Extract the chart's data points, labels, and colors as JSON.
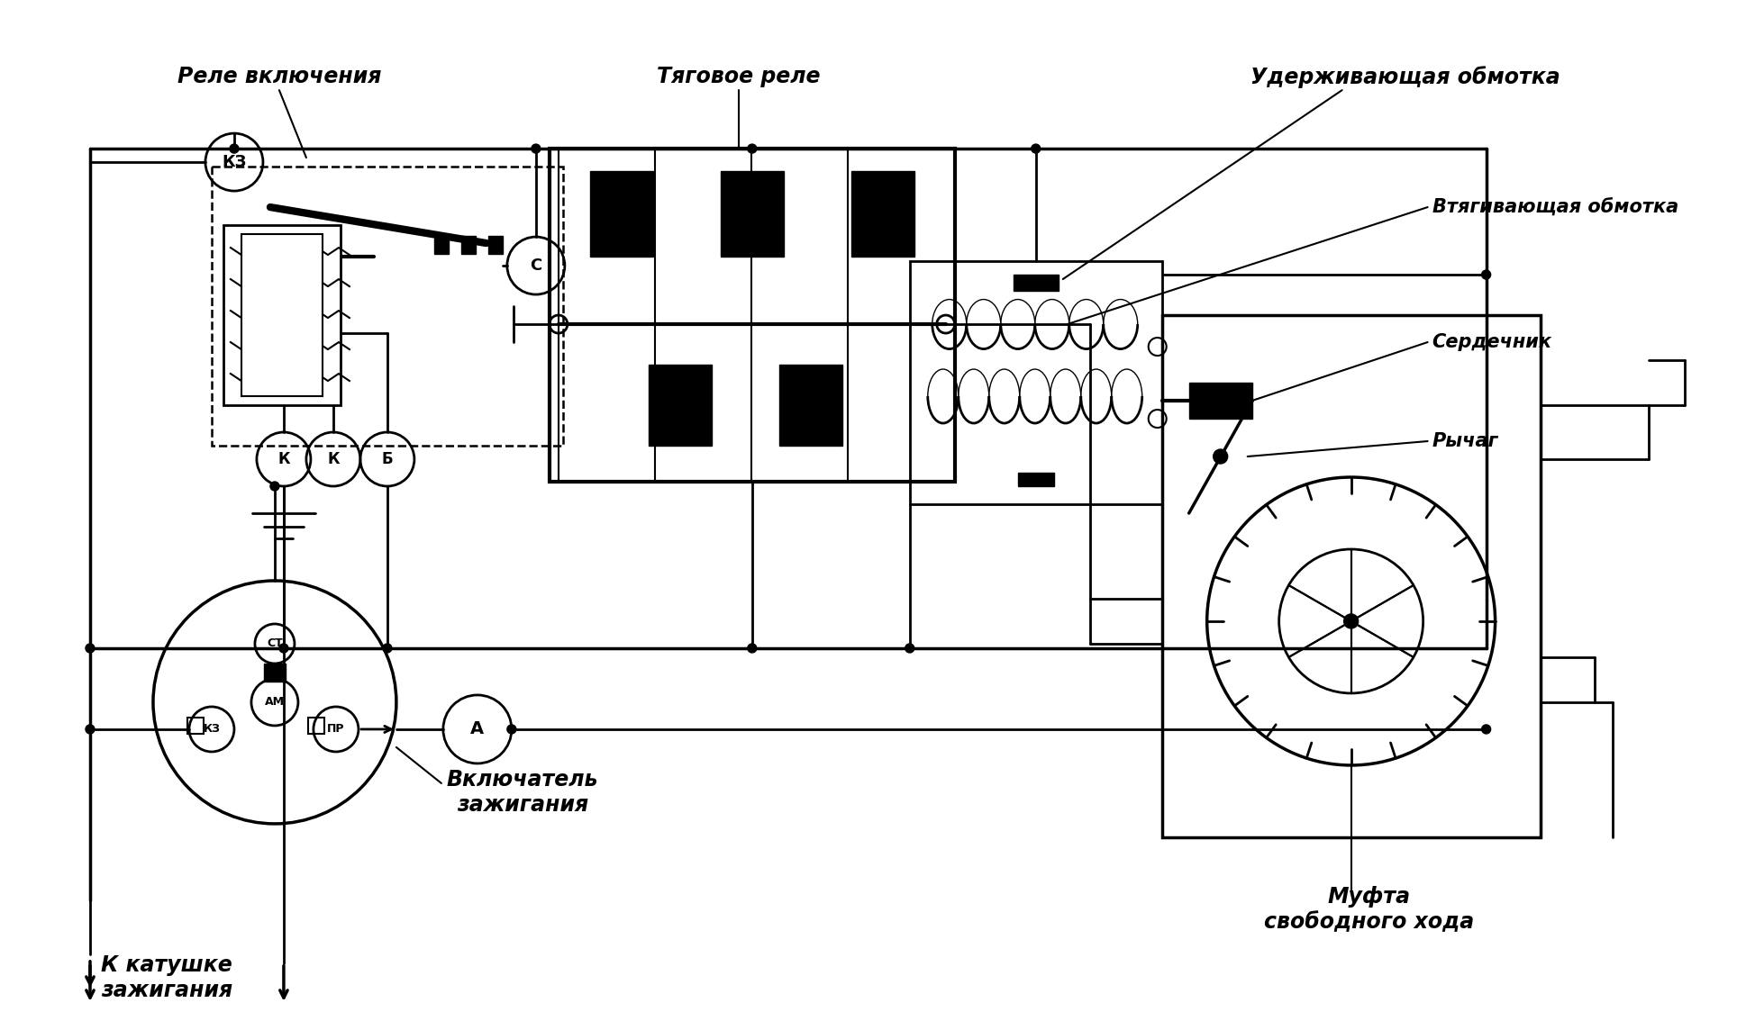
{
  "bg_color": "#ffffff",
  "lc": "#000000",
  "lw": 2.0,
  "fig_w": 19.38,
  "fig_h": 11.34,
  "labels": {
    "rele_vkl": "Реле включения",
    "tyagovoe": "Тяговое реле",
    "uderzh": "Удерживающая обмотка",
    "vtyag": "Втягивающая обмотка",
    "serdechnik": "Сердечник",
    "rychag": "Рычаг",
    "mufta": "Муфта\nсвободного хода",
    "vkl_zazhig": "Включатель\nзажигания",
    "k_katushke": "К катушке\nзажигания"
  }
}
